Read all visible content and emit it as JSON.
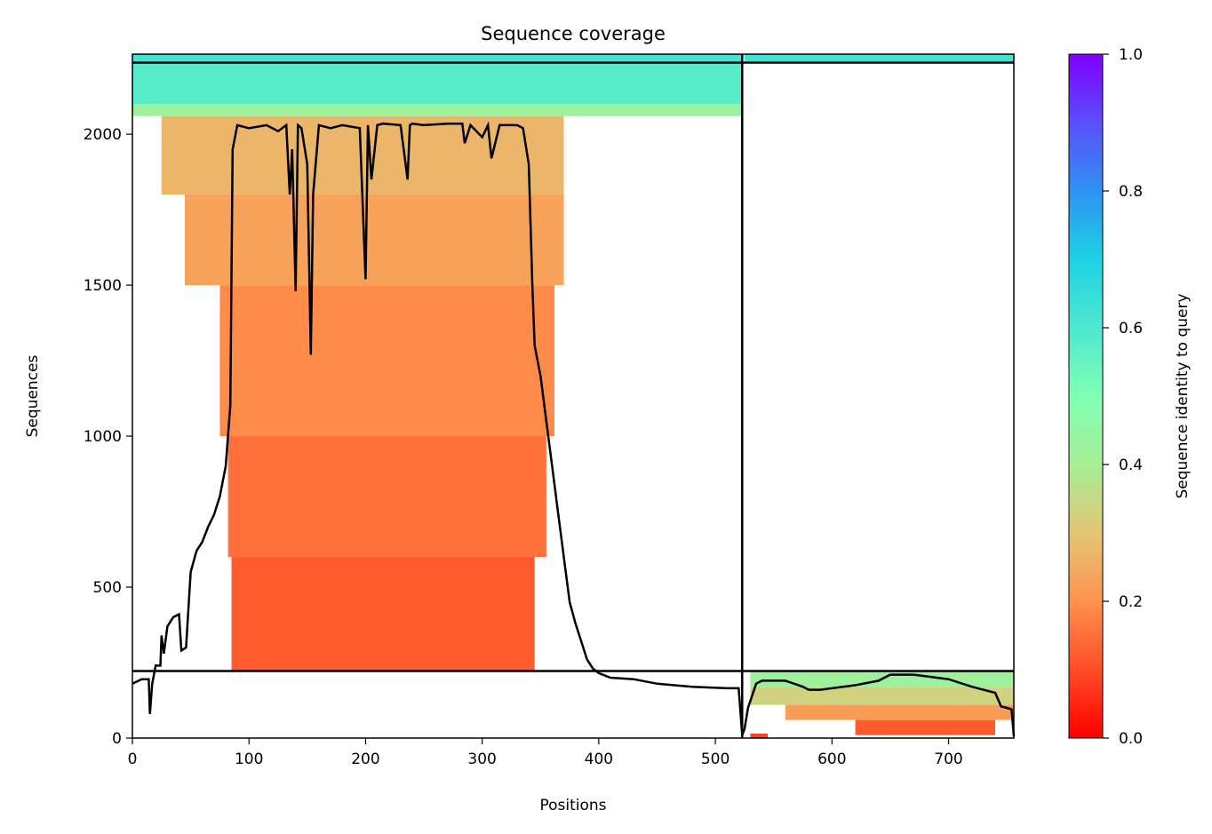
{
  "chart_data": {
    "type": "heatmap",
    "title": "Sequence coverage",
    "xlabel": "Positions",
    "ylabel": "Sequences",
    "xlim": [
      0,
      756
    ],
    "ylim": [
      0,
      2265
    ],
    "xticks": [
      0,
      100,
      200,
      300,
      400,
      500,
      600,
      700
    ],
    "yticks": [
      0,
      500,
      1000,
      1500,
      2000
    ],
    "colorbar": {
      "label": "Sequence identity to query",
      "range": [
        0.0,
        1.0
      ],
      "ticks": [
        "0.0",
        "0.2",
        "0.4",
        "0.6",
        "0.8",
        "1.0"
      ],
      "colormap": "rainbow_r"
    },
    "separators": {
      "vertical_x": [
        523
      ],
      "horizontal_y": [
        222,
        2237
      ]
    },
    "coverage_blocks": [
      {
        "x0": 0,
        "x1": 523,
        "y0": 2237,
        "y1": 2265,
        "identity": 0.62
      },
      {
        "x0": 0,
        "x1": 523,
        "y0": 2100,
        "y1": 2237,
        "identity": 0.58
      },
      {
        "x0": 0,
        "x1": 523,
        "y0": 2060,
        "y1": 2100,
        "identity": 0.42
      },
      {
        "x0": 25,
        "x1": 370,
        "y0": 1800,
        "y1": 2060,
        "identity": 0.27
      },
      {
        "x0": 45,
        "x1": 370,
        "y0": 1500,
        "y1": 1800,
        "identity": 0.23
      },
      {
        "x0": 75,
        "x1": 362,
        "y0": 1000,
        "y1": 1500,
        "identity": 0.19
      },
      {
        "x0": 82,
        "x1": 355,
        "y0": 600,
        "y1": 1000,
        "identity": 0.15
      },
      {
        "x0": 85,
        "x1": 345,
        "y0": 222,
        "y1": 600,
        "identity": 0.12
      },
      {
        "x0": 525,
        "x1": 756,
        "y0": 2237,
        "y1": 2265,
        "identity": 0.62
      },
      {
        "x0": 530,
        "x1": 756,
        "y0": 170,
        "y1": 222,
        "identity": 0.42
      },
      {
        "x0": 530,
        "x1": 756,
        "y0": 110,
        "y1": 170,
        "identity": 0.33
      },
      {
        "x0": 560,
        "x1": 756,
        "y0": 60,
        "y1": 110,
        "identity": 0.22
      },
      {
        "x0": 620,
        "x1": 740,
        "y0": 10,
        "y1": 60,
        "identity": 0.12
      },
      {
        "x0": 530,
        "x1": 545,
        "y0": 0,
        "y1": 15,
        "identity": 0.08
      }
    ],
    "coverage_line": {
      "x": [
        0,
        8,
        14,
        15,
        17,
        20,
        24,
        25,
        27,
        30,
        35,
        40,
        42,
        46,
        50,
        55,
        60,
        65,
        70,
        75,
        80,
        84,
        86,
        90,
        100,
        115,
        125,
        132,
        135,
        137,
        140,
        142,
        145,
        150,
        153,
        155,
        160,
        170,
        180,
        195,
        200,
        202,
        205,
        210,
        215,
        230,
        236,
        238,
        240,
        250,
        270,
        283,
        285,
        290,
        300,
        305,
        308,
        315,
        330,
        335,
        340,
        343,
        345,
        350,
        355,
        360,
        365,
        370,
        375,
        380,
        385,
        390,
        395,
        400,
        410,
        430,
        450,
        480,
        510,
        520,
        523,
        525,
        528,
        535,
        540,
        560,
        575,
        580,
        590,
        600,
        620,
        640,
        650,
        670,
        700,
        720,
        740,
        745,
        750,
        754,
        756
      ],
      "y": [
        180,
        195,
        195,
        80,
        180,
        240,
        240,
        340,
        280,
        370,
        400,
        410,
        290,
        300,
        550,
        620,
        650,
        700,
        740,
        800,
        900,
        1100,
        1950,
        2030,
        2020,
        2030,
        2010,
        2030,
        1800,
        1950,
        1480,
        2030,
        2020,
        1900,
        1270,
        1800,
        2030,
        2020,
        2030,
        2020,
        1520,
        2030,
        1850,
        2030,
        2035,
        2030,
        1850,
        2030,
        2035,
        2030,
        2035,
        2035,
        1970,
        2030,
        1990,
        2030,
        1920,
        2030,
        2030,
        2020,
        1900,
        1500,
        1300,
        1200,
        1050,
        900,
        750,
        600,
        450,
        380,
        320,
        260,
        230,
        215,
        200,
        195,
        180,
        170,
        165,
        165,
        10,
        30,
        100,
        180,
        190,
        190,
        170,
        160,
        160,
        165,
        175,
        190,
        210,
        210,
        195,
        170,
        150,
        105,
        100,
        95,
        5
      ]
    }
  }
}
